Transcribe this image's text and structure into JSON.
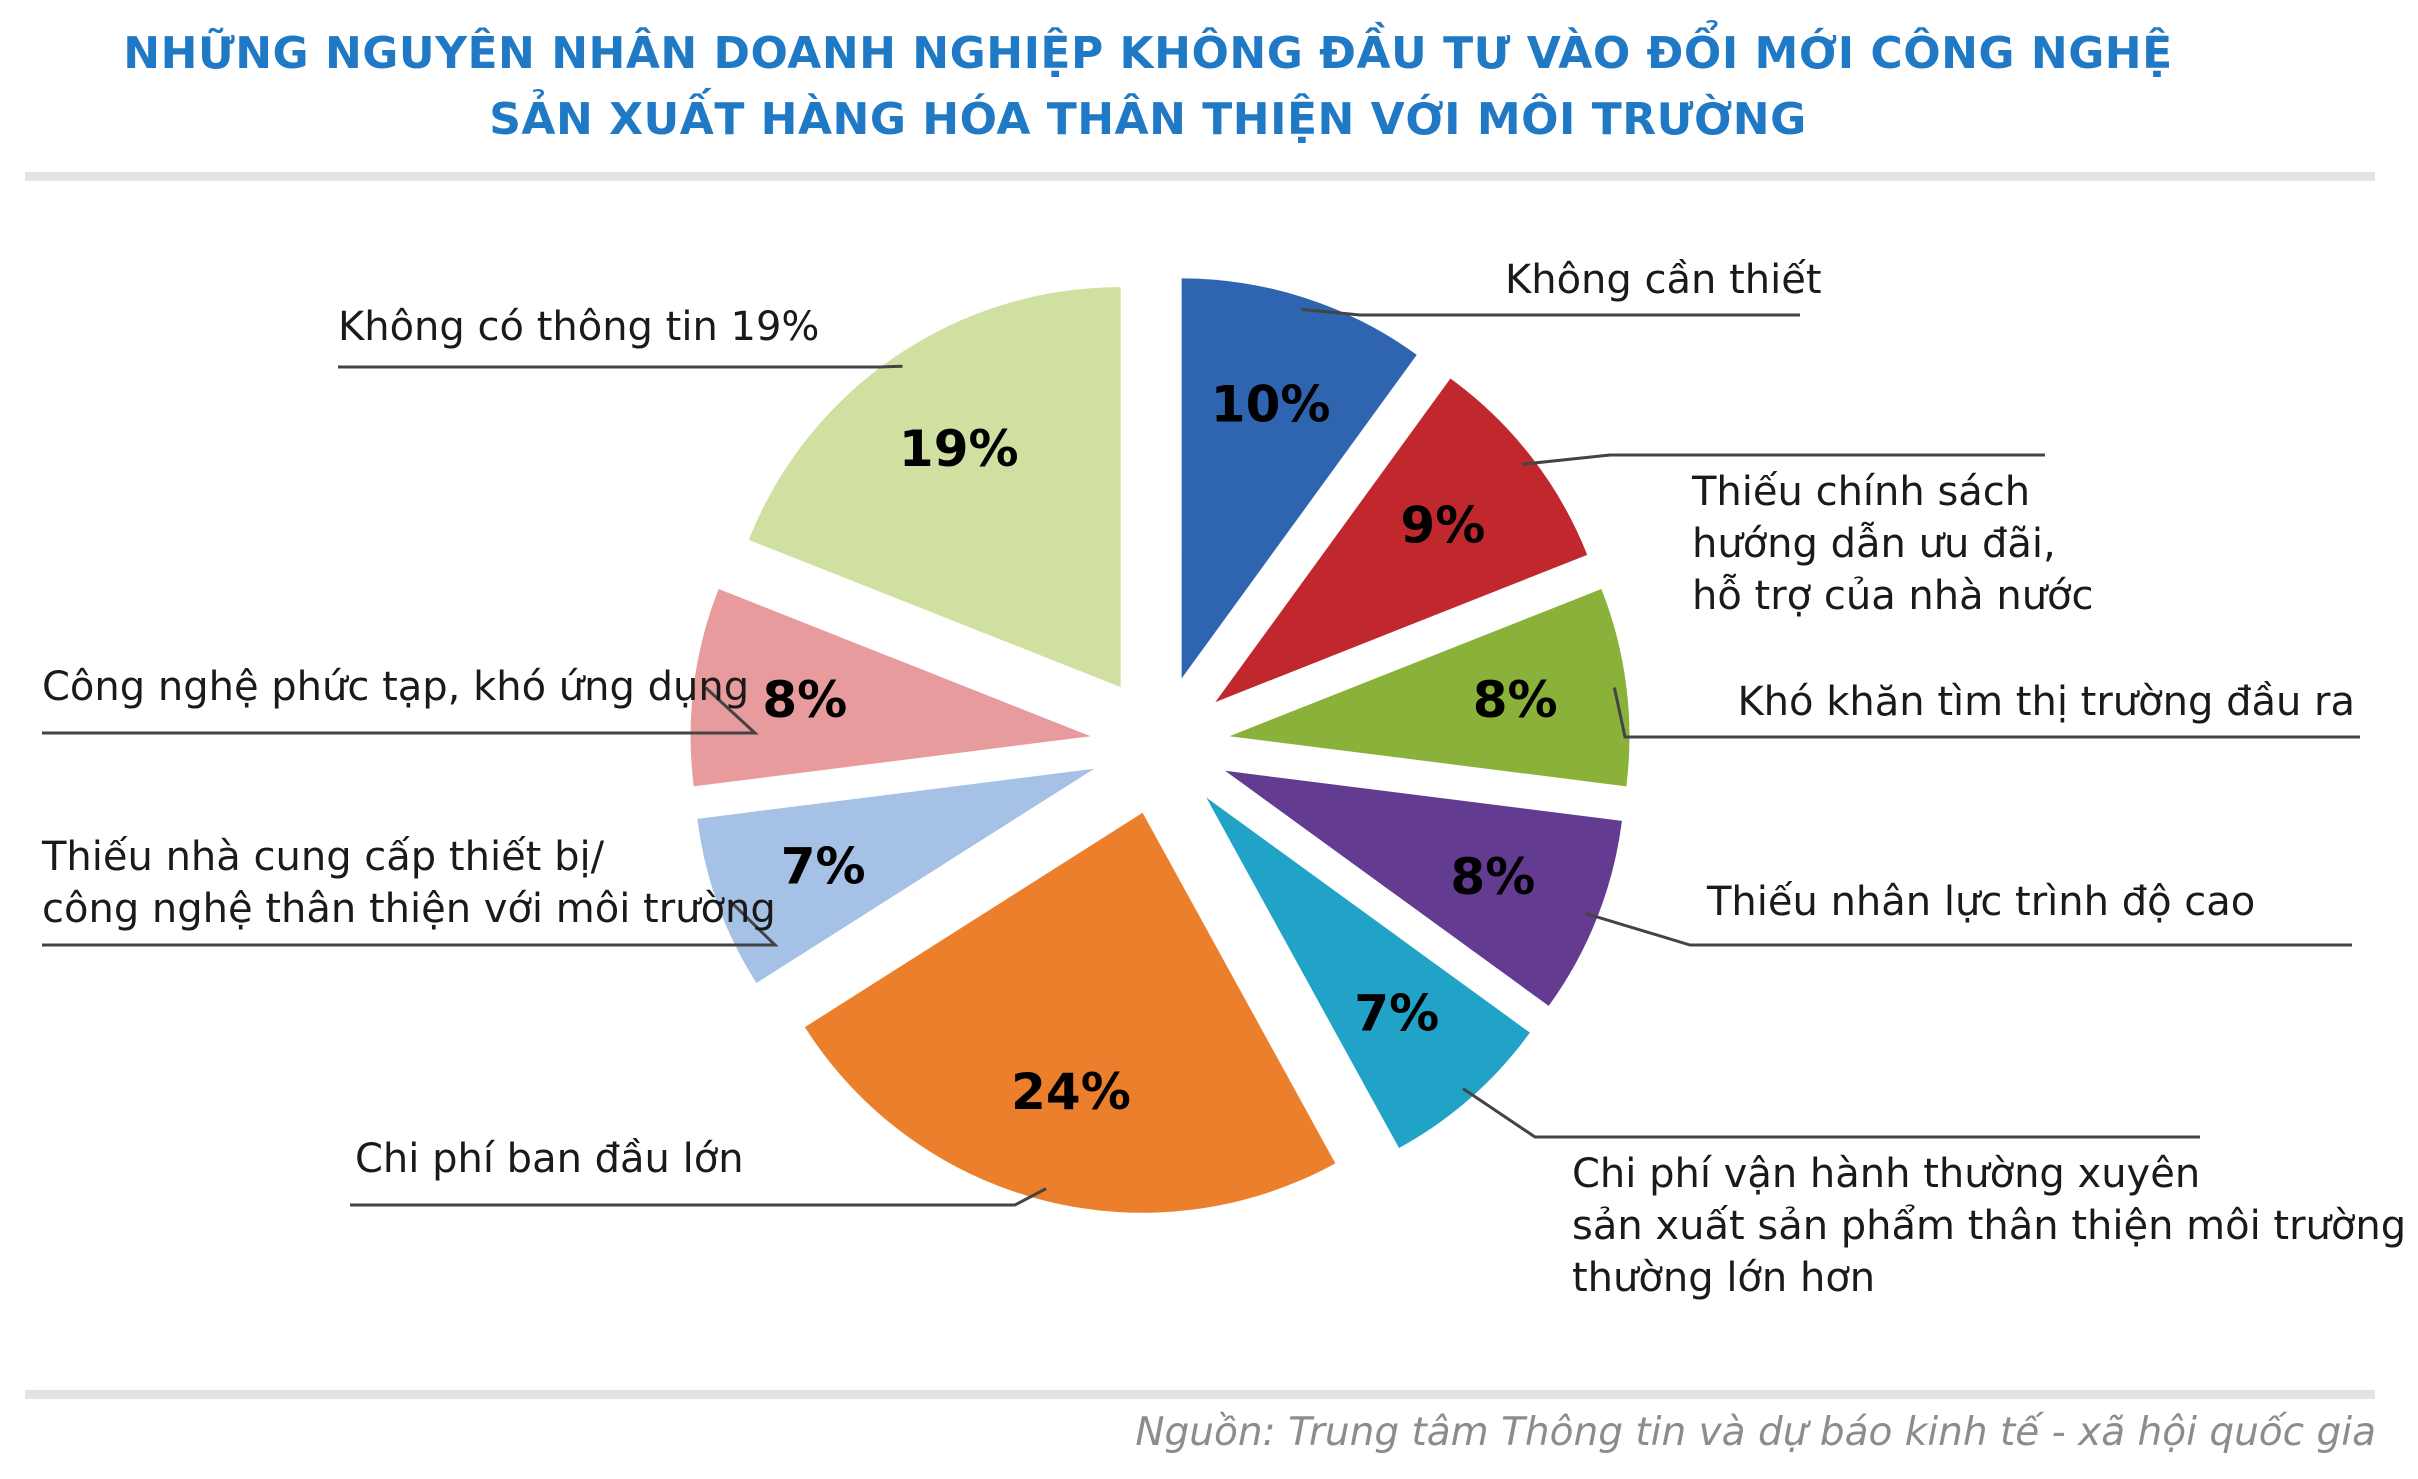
{
  "title_lines": [
    "NHỮNG NGUYÊN NHÂN DOANH NGHIỆP KHÔNG ĐẦU TƯ VÀO ĐỔI MỚI CÔNG NGHỆ",
    "SẢN XUẤT HÀNG HÓA THÂN THIỆN VỚI MÔI TRƯỜNG"
  ],
  "source": "Nguồn: Trung tâm Thông tin và dự báo kinh tế - xã hội quốc gia",
  "chart_data": {
    "type": "pie",
    "title": "NHỮNG NGUYÊN NHÂN DOANH NGHIỆP KHÔNG ĐẦU TƯ VÀO ĐỔI MỚI CÔNG NGHỆ SẢN XUẤT HÀNG HÓA THÂN THIỆN VỚI MÔI TRƯỜNG",
    "unit": "%",
    "exploded": true,
    "slices": [
      {
        "label": "Không cần thiết",
        "value": 10,
        "value_label": "10%",
        "color": "#2e64b0"
      },
      {
        "label": "Thiếu chính sách hướng dẫn ưu đãi, hỗ trợ của nhà nước",
        "label_lines": [
          "Thiếu chính sách",
          "hướng dẫn ưu đãi,",
          "hỗ trợ của nhà nước"
        ],
        "value": 9,
        "value_label": "9%",
        "color": "#c1282d"
      },
      {
        "label": "Khó khăn tìm thị trường đầu ra",
        "value": 8,
        "value_label": "8%",
        "color": "#8ab23b"
      },
      {
        "label": "Thiếu nhân lực trình độ cao",
        "value": 8,
        "value_label": "8%",
        "color": "#633c92"
      },
      {
        "label": "Chi phí vận hành thường xuyên sản xuất sản phẩm thân thiện môi trường thường lớn hơn",
        "label_lines": [
          "Chi phí vận hành thường xuyên",
          "sản xuất sản phẩm thân thiện môi trường",
          "thường lớn hơn"
        ],
        "value": 7,
        "value_label": "7%",
        "color": "#21a3c8"
      },
      {
        "label": "Chi phí ban đầu lớn",
        "value": 24,
        "value_label": "24%",
        "color": "#ec7f2c"
      },
      {
        "label": "Thiếu nhà cung cấp thiết bị/ công nghệ thân thiện với môi trường",
        "label_lines": [
          "Thiếu nhà cung cấp thiết bị/",
          "công nghệ thân thiện với môi trường"
        ],
        "value": 7,
        "value_label": "7%",
        "color": "#a5c1e6"
      },
      {
        "label": "Công nghệ phức tạp, khó ứng dụng",
        "value": 8,
        "value_label": "8%",
        "color": "#e89b9c"
      },
      {
        "label": "Không có thông tin 19%",
        "value": 19,
        "value_label": "19%",
        "color": "#cfe0a0"
      }
    ]
  }
}
